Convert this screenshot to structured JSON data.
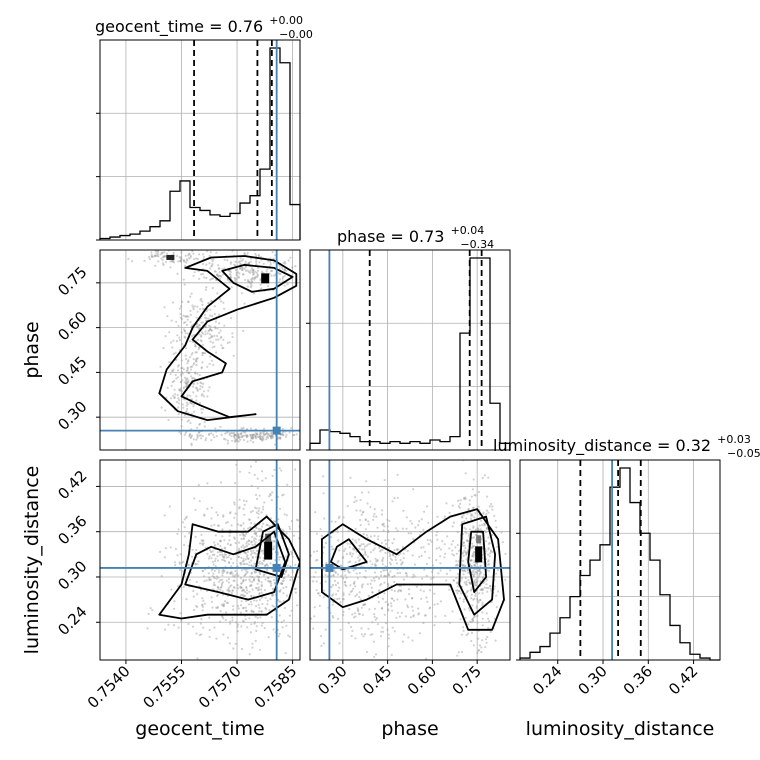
{
  "chart_data": {
    "type": "corner",
    "parameters": [
      "geocent_time",
      "phase",
      "luminosity_distance"
    ],
    "truths": {
      "geocent_time": 0.75807,
      "phase": 0.255,
      "luminosity_distance": 0.312
    },
    "quantiles": {
      "geocent_time": [
        0.75584,
        0.75755,
        0.75794
      ],
      "phase": [
        0.39,
        0.725,
        0.765
      ],
      "luminosity_distance": [
        0.27,
        0.32,
        0.35
      ]
    },
    "titles": {
      "geocent_time": {
        "label": "geocent_time = 0.76",
        "plus": "+0.00",
        "minus": "−0.00"
      },
      "phase": {
        "label": "phase = 0.73",
        "plus": "+0.04",
        "minus": "−0.34"
      },
      "luminosity_distance": {
        "label": "luminosity_distance = 0.32",
        "plus": "+0.03",
        "minus": "−0.05"
      }
    },
    "axes": {
      "geocent_time": {
        "range": [
          0.7533,
          0.7587
        ],
        "ticks": [
          "0.7540",
          "0.7555",
          "0.7570",
          "0.7585"
        ],
        "tick_values": [
          0.754,
          0.7555,
          0.757,
          0.7585
        ]
      },
      "phase": {
        "range": [
          0.19,
          0.86
        ],
        "ticks": [
          "0.30",
          "0.45",
          "0.60",
          "0.75"
        ],
        "tick_values": [
          0.3,
          0.45,
          0.6,
          0.75
        ]
      },
      "luminosity_distance": {
        "range": [
          0.19,
          0.455
        ],
        "ticks": [
          "0.24",
          "0.30",
          "0.36",
          "0.42"
        ],
        "tick_values": [
          0.24,
          0.3,
          0.36,
          0.42
        ]
      }
    },
    "histograms": {
      "geocent_time": {
        "bins": 20,
        "counts": [
          1,
          2,
          3,
          4,
          6,
          9,
          13,
          33,
          40,
          22,
          20,
          17,
          16,
          18,
          25,
          30,
          48,
          130,
          120,
          24
        ]
      },
      "phase": {
        "bins": 20,
        "counts": [
          4,
          12,
          11,
          10,
          8,
          5,
          5,
          4,
          5,
          4,
          5,
          4,
          6,
          5,
          8,
          70,
          115,
          115,
          28,
          4
        ]
      },
      "luminosity_distance": {
        "bins": 20,
        "counts": [
          1,
          4,
          7,
          14,
          22,
          33,
          44,
          52,
          60,
          90,
          100,
          82,
          66,
          52,
          34,
          18,
          9,
          3,
          1,
          0
        ]
      }
    },
    "grid": true,
    "colors": {
      "truth": "#4682b4",
      "hist": "#000000",
      "scatter": "#999999",
      "grid": "#b0b0b0"
    }
  },
  "labels": {
    "x_geocent_time": "geocent_time",
    "x_phase": "phase",
    "x_luminosity_distance": "luminosity_distance",
    "y_phase": "phase",
    "y_luminosity_distance": "luminosity_distance"
  }
}
